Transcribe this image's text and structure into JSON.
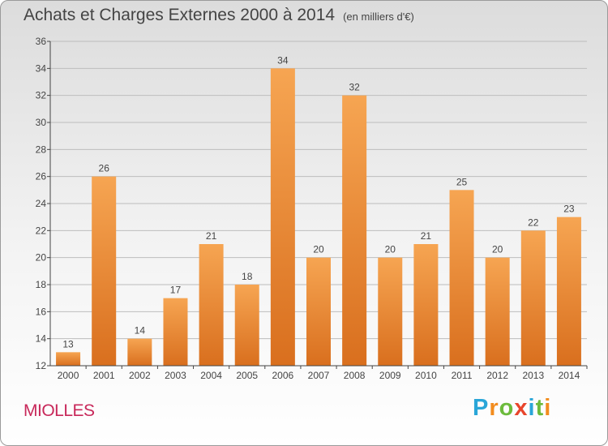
{
  "header": {
    "title": "Achats et Charges Externes 2000 à 2014",
    "subtitle": "(en milliers d'€)"
  },
  "commune": "MIOLLES",
  "logo": {
    "letters": [
      "P",
      "r",
      "o",
      "x",
      "i",
      "t",
      "i"
    ],
    "colors": [
      "#2aa6d8",
      "#f28c1e",
      "#6cbb3c",
      "#e8452c",
      "#2aa6d8",
      "#6cbb3c",
      "#f28c1e"
    ]
  },
  "colors": {
    "bar_top": "#f6a552",
    "bar_bottom": "#d96f1e",
    "axis": "#444444",
    "grid": "#bdbdbd"
  },
  "chart_data": {
    "type": "bar",
    "title": "Achats et Charges Externes 2000 à 2014",
    "subtitle": "(en milliers d'€)",
    "categories": [
      "2000",
      "2001",
      "2002",
      "2003",
      "2004",
      "2005",
      "2006",
      "2007",
      "2008",
      "2009",
      "2010",
      "2011",
      "2012",
      "2013",
      "2014"
    ],
    "values": [
      13,
      26,
      14,
      17,
      21,
      18,
      34,
      20,
      32,
      20,
      21,
      25,
      20,
      22,
      23
    ],
    "ylim": [
      12,
      36
    ],
    "yticks": [
      12,
      14,
      16,
      18,
      20,
      22,
      24,
      26,
      28,
      30,
      32,
      34,
      36
    ],
    "grid": true,
    "data_labels": true
  }
}
